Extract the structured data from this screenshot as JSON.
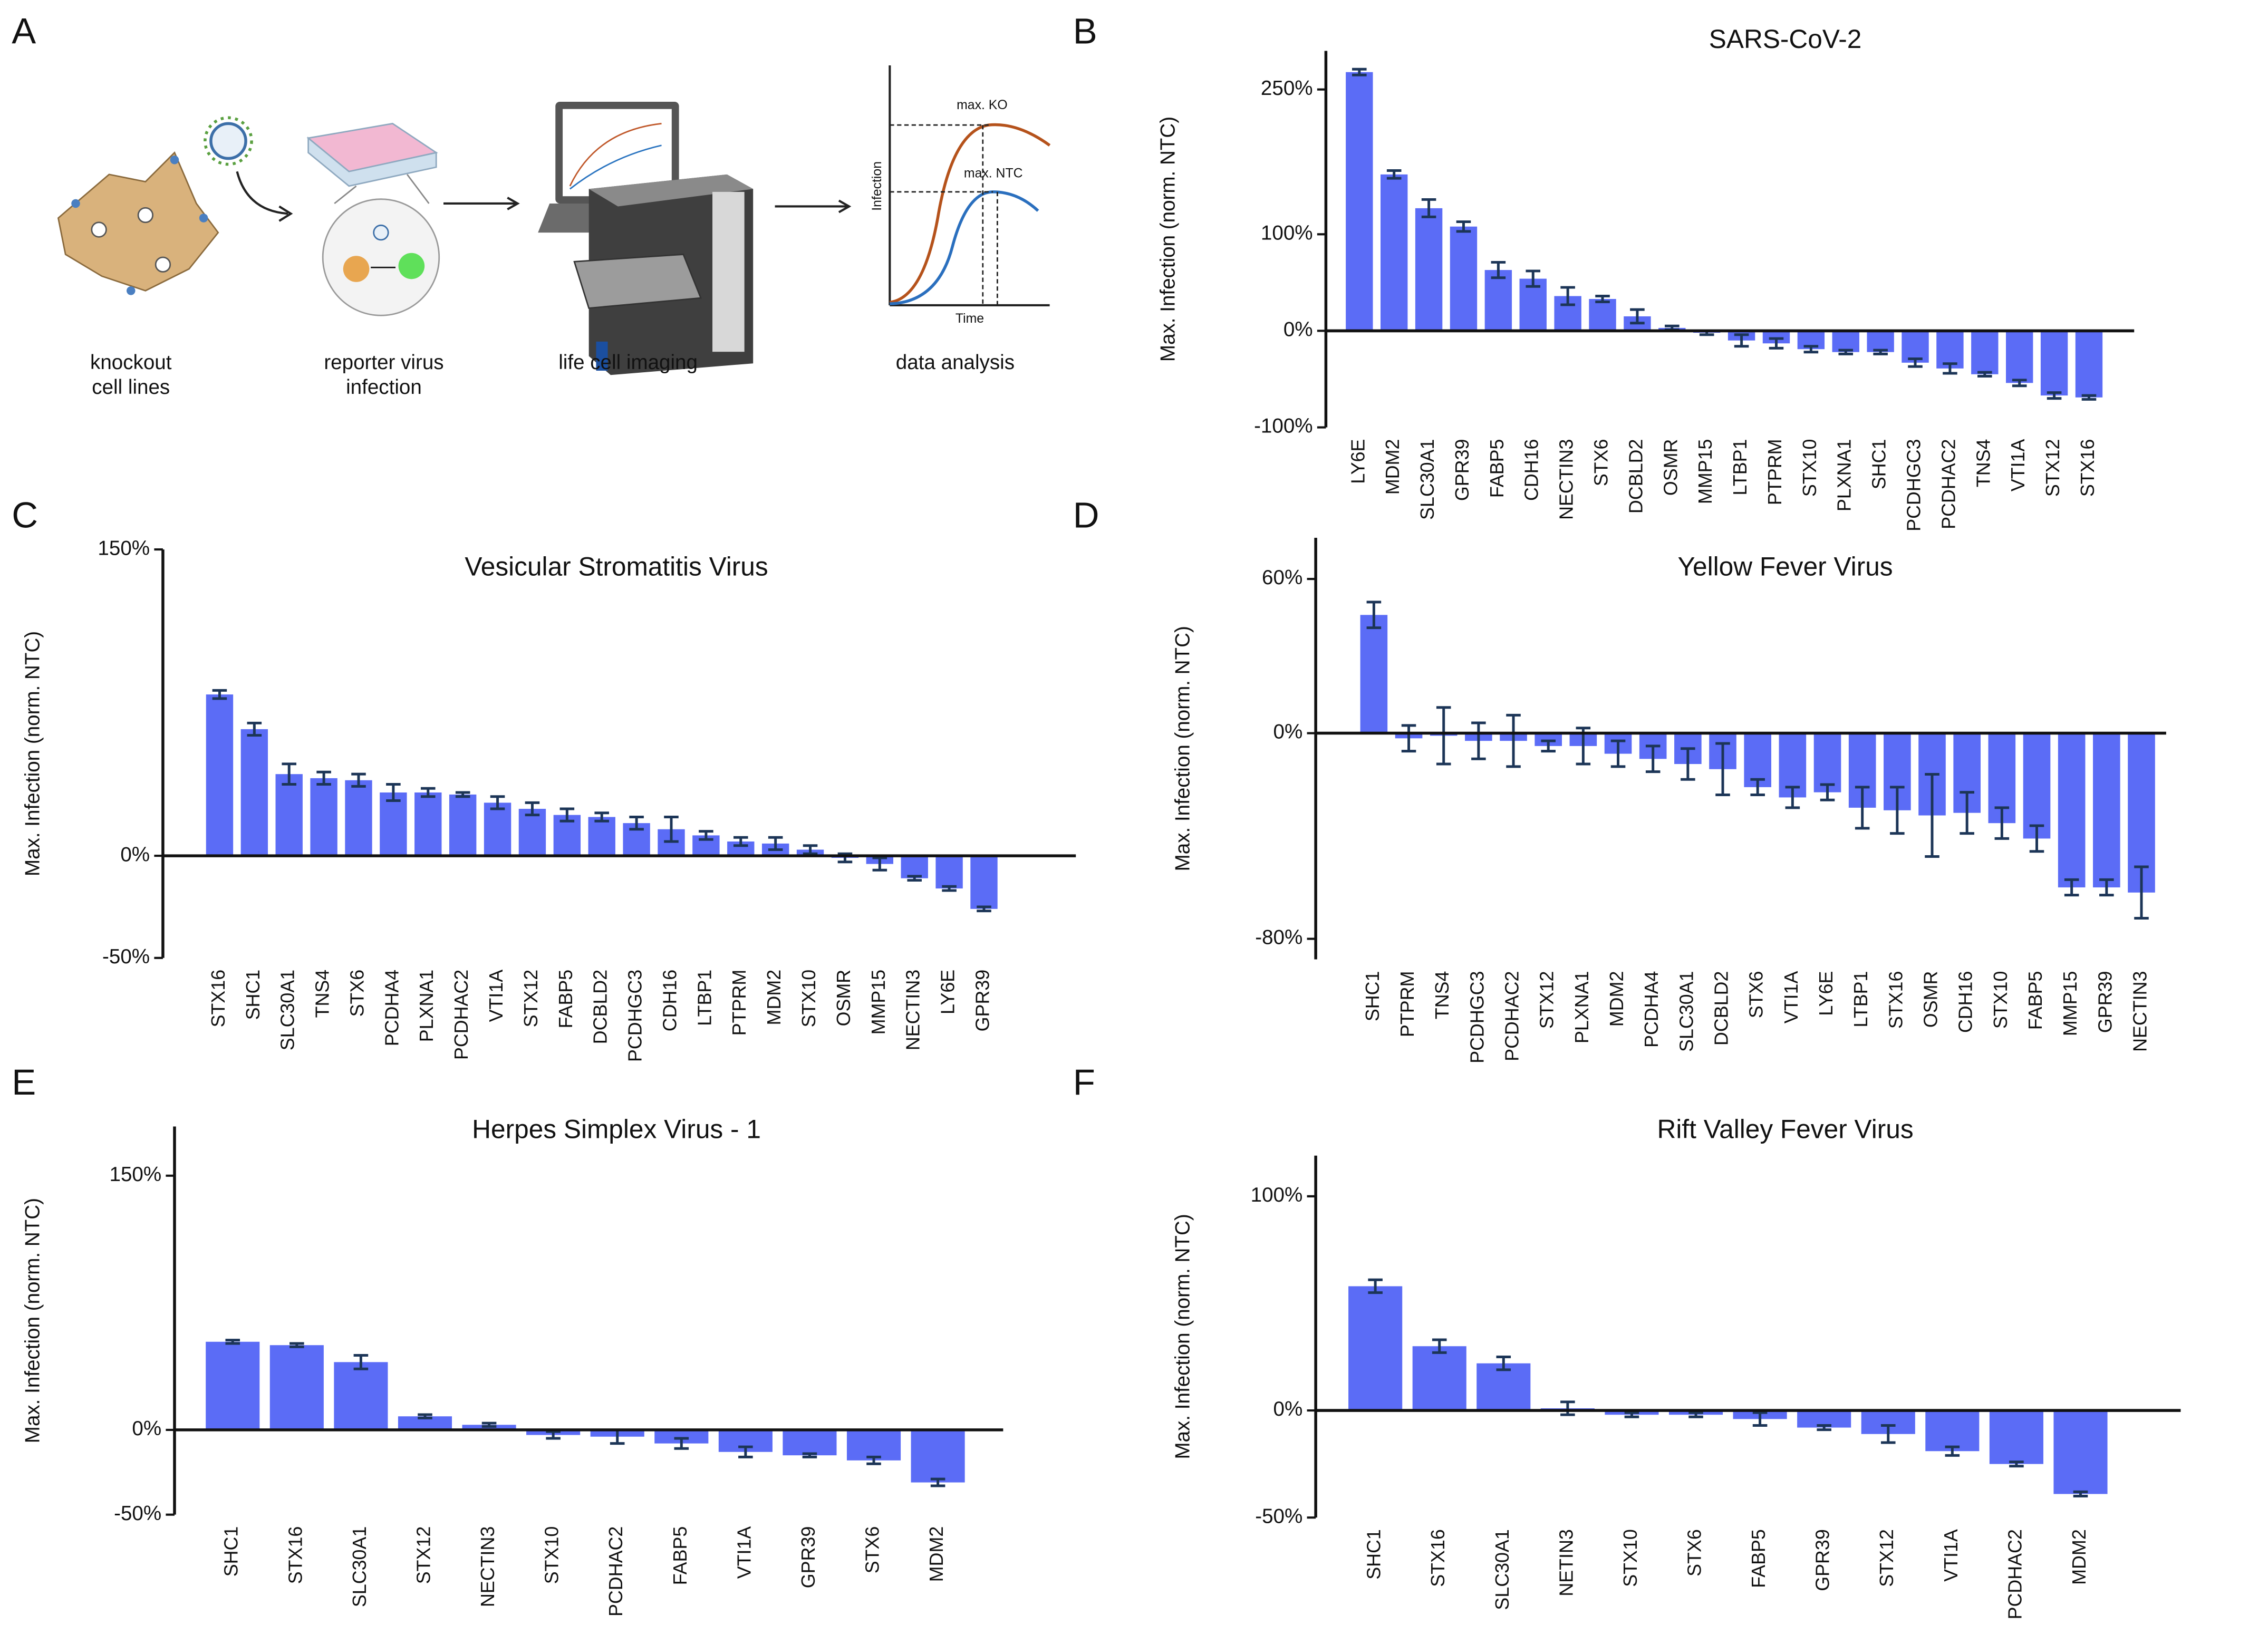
{
  "panel_labels": [
    "A",
    "B",
    "C",
    "D",
    "E",
    "F"
  ],
  "diagram": {
    "steps": [
      [
        "knockout",
        "cell lines"
      ],
      [
        "reporter virus",
        "infection"
      ],
      [
        "life cell imaging"
      ],
      [
        "data analysis"
      ]
    ],
    "plot": {
      "max_ko": "max. KO",
      "max_ntc": "max. NTC",
      "ylabel": "Infection",
      "xlabel": "Time"
    }
  },
  "chart_data": [
    {
      "type": "bar",
      "title": "SARS-CoV-2",
      "ylabel": "Max. Infection (norm. NTC)",
      "categories": [
        "LY6E",
        "MDM2",
        "SLC30A1",
        "GPR39",
        "FABP5",
        "CDH16",
        "NECTIN3",
        "STX6",
        "DCBLD2",
        "OSMR",
        "MMP15",
        "LTBP1",
        "PTPRM",
        "STX10",
        "PLXNA1",
        "SHC1",
        "PCDHGC3",
        "PCDHAC2",
        "TNS4",
        "VTI1A",
        "STX12",
        "STX16"
      ],
      "values": [
        268,
        162,
        127,
        108,
        63,
        54,
        36,
        33,
        15,
        3,
        -2,
        -10,
        -13,
        -19,
        -22,
        -22,
        -33,
        -39,
        -45,
        -54,
        -67,
        -69
      ],
      "errors": [
        3,
        4,
        9,
        5,
        8,
        8,
        9,
        3,
        7,
        2,
        2,
        6,
        5,
        3,
        2,
        2,
        4,
        5,
        2,
        3,
        3,
        2
      ],
      "color": "#5b6cf6",
      "error_color": "#1c3557",
      "ylim": [
        -100,
        290
      ],
      "yticks": [
        {
          "value": -100,
          "label": "-100%"
        },
        {
          "value": 0,
          "label": "0%"
        },
        {
          "value": 100,
          "label": "100%"
        },
        {
          "value": 250,
          "label": "250%"
        }
      ]
    },
    {
      "type": "bar",
      "title": "Vesicular Stromatitis Virus",
      "ylabel": "Max. Infection (norm. NTC)",
      "categories": [
        "STX16",
        "SHC1",
        "SLC30A1",
        "TNS4",
        "STX6",
        "PCDHA4",
        "PLXNA1",
        "PCDHAC2",
        "VTI1A",
        "STX12",
        "FABP5",
        "DCBLD2",
        "PCDHGC3",
        "CDH16",
        "LTBP1",
        "PTPRM",
        "MDM2",
        "STX10",
        "OSMR",
        "MMP15",
        "NECTIN3",
        "LY6E",
        "GPR39"
      ],
      "values": [
        79,
        62,
        40,
        38,
        37,
        31,
        31,
        30,
        26,
        23,
        20,
        19,
        16,
        13,
        10,
        7,
        6,
        3,
        -1,
        -4,
        -11,
        -16,
        -26
      ],
      "errors": [
        2,
        3,
        5,
        3,
        3,
        4,
        2,
        1,
        3,
        3,
        3,
        2,
        3,
        6,
        2,
        2,
        3,
        2,
        2,
        3,
        1,
        1,
        1
      ],
      "color": "#5b6cf6",
      "error_color": "#1c3557",
      "ylim": [
        -50,
        150
      ],
      "yticks": [
        {
          "value": -50,
          "label": "-50%"
        },
        {
          "value": 0,
          "label": "0%"
        },
        {
          "value": 150,
          "label": "150%"
        }
      ]
    },
    {
      "type": "bar",
      "title": "Yellow Fever Virus",
      "ylabel": "Max. Infection (norm. NTC)",
      "categories": [
        "SHC1",
        "PTPRM",
        "TNS4",
        "PCDHGC3",
        "PCDHAC2",
        "STX12",
        "PLXNA1",
        "MDM2",
        "PCDHA4",
        "SLC30A1",
        "DCBLD2",
        "STX6",
        "VTI1A",
        "LY6E",
        "LTBP1",
        "STX16",
        "OSMR",
        "CDH16",
        "STX10",
        "FABP5",
        "MMP15",
        "GPR39",
        "NECTIN3"
      ],
      "values": [
        46,
        -2,
        -1,
        -3,
        -3,
        -5,
        -5,
        -8,
        -10,
        -12,
        -14,
        -21,
        -25,
        -23,
        -29,
        -30,
        -32,
        -31,
        -35,
        -41,
        -60,
        -60,
        -62
      ],
      "errors": [
        5,
        5,
        11,
        7,
        10,
        2,
        7,
        5,
        5,
        6,
        10,
        3,
        4,
        3,
        8,
        9,
        16,
        8,
        6,
        5,
        3,
        3,
        10
      ],
      "color": "#5b6cf6",
      "error_color": "#1c3557",
      "ylim": [
        -88,
        76
      ],
      "yticks": [
        {
          "value": -80,
          "label": "-80%"
        },
        {
          "value": 0,
          "label": "0%"
        },
        {
          "value": 60,
          "label": "60%"
        }
      ]
    },
    {
      "type": "bar",
      "title": "Herpes Simplex Virus - 1",
      "ylabel": "Max. Infection (norm. NTC)",
      "categories": [
        "SHC1",
        "STX16",
        "SLC30A1",
        "STX12",
        "NECTIN3",
        "STX10",
        "PCDHAC2",
        "FABP5",
        "VTI1A",
        "GPR39",
        "STX6",
        "MDM2"
      ],
      "values": [
        52,
        50,
        40,
        8,
        3,
        -3,
        -4,
        -8,
        -13,
        -15,
        -18,
        -31
      ],
      "errors": [
        1,
        1,
        4,
        1,
        1,
        2,
        4,
        3,
        3,
        1,
        2,
        2
      ],
      "color": "#5b6cf6",
      "error_color": "#1c3557",
      "ylim": [
        -50,
        179
      ],
      "yticks": [
        {
          "value": -50,
          "label": "-50%"
        },
        {
          "value": 0,
          "label": "0%"
        },
        {
          "value": 150,
          "label": "150%"
        }
      ]
    },
    {
      "type": "bar",
      "title": "Rift Valley Fever Virus",
      "ylabel": "Max. Infection (norm. NTC)",
      "categories": [
        "SHC1",
        "STX16",
        "SLC30A1",
        "NETIN3",
        "STX10",
        "STX6",
        "FABP5",
        "GPR39",
        "STX12",
        "VTI1A",
        "PCDHAC2",
        "MDM2"
      ],
      "values": [
        58,
        30,
        22,
        1,
        -2,
        -2,
        -4,
        -8,
        -11,
        -19,
        -25,
        -39
      ],
      "errors": [
        3,
        3,
        3,
        3,
        1,
        1,
        3,
        1,
        4,
        2,
        1,
        1
      ],
      "color": "#5b6cf6",
      "error_color": "#1c3557",
      "ylim": [
        -50,
        119
      ],
      "yticks": [
        {
          "value": -50,
          "label": "-50%"
        },
        {
          "value": 0,
          "label": "0%"
        },
        {
          "value": 100,
          "label": "100%"
        }
      ]
    }
  ]
}
